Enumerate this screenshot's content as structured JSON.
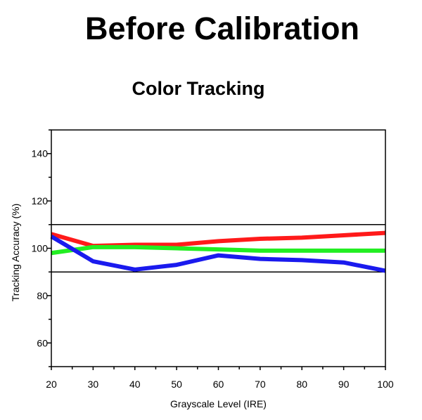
{
  "page": {
    "title": "Before Calibration"
  },
  "chart_data": {
    "type": "line",
    "title": "Color Tracking",
    "xlabel": "Grayscale Level (IRE)",
    "ylabel": "Tracking Accuracy (%)",
    "x": [
      20,
      30,
      40,
      50,
      60,
      70,
      80,
      90,
      100
    ],
    "xlim": [
      20,
      100
    ],
    "ylim": [
      50,
      150
    ],
    "xticks": [
      20,
      30,
      40,
      50,
      60,
      70,
      80,
      90,
      100
    ],
    "yticks": [
      60,
      80,
      100,
      120,
      140
    ],
    "reference_lines": [
      90,
      110
    ],
    "legend": "none",
    "series": [
      {
        "color": "#ff1a1a",
        "values": [
          106,
          101,
          101.5,
          101.5,
          103,
          104,
          104.5,
          105.5,
          106.5
        ]
      },
      {
        "color": "#22ee22",
        "values": [
          98,
          100.5,
          100.5,
          100,
          99.5,
          99,
          99,
          99,
          99
        ]
      },
      {
        "color": "#1a1aee",
        "values": [
          105,
          94.5,
          91,
          93,
          97,
          95.5,
          95,
          94,
          90.5
        ]
      }
    ]
  }
}
